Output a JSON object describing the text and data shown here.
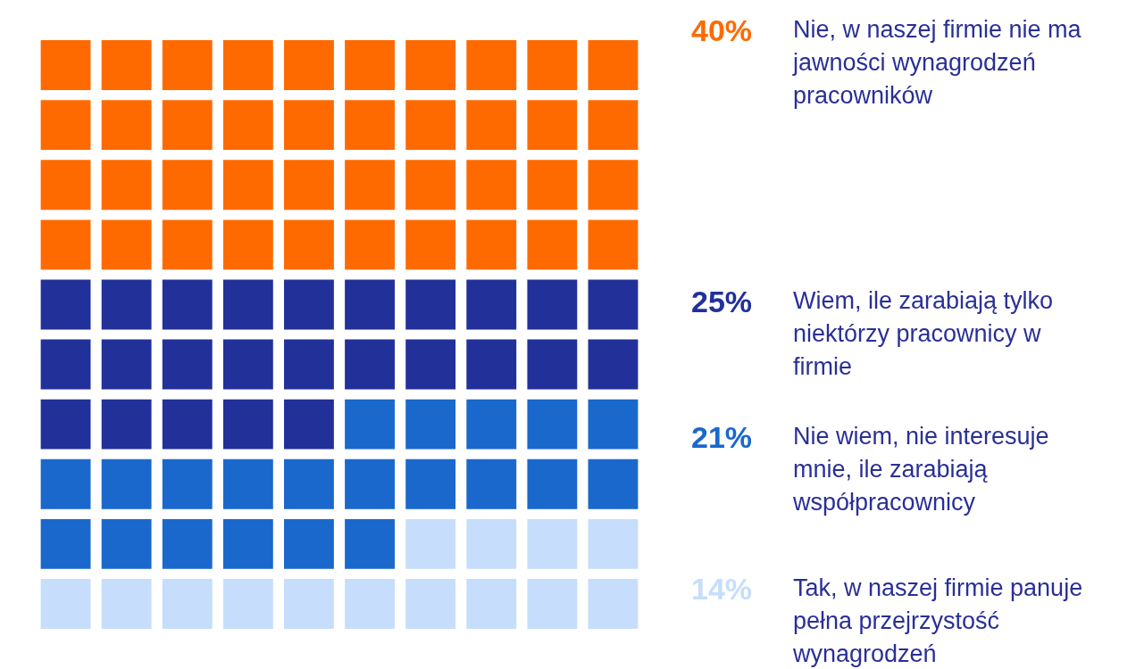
{
  "chart_data": {
    "type": "other",
    "categories": [
      "Nie, w naszej firmie nie ma jawności wynagrodzeń pracowników",
      "Wiem, ile zarabiają tylko niektórzy pracownicy w firmie",
      "Nie wiem, nie interesuje mnie, ile zarabiają współpracownicy",
      "Tak, w naszej firmie panuje pełna przejrzystość wynagrodzeń"
    ],
    "values": [
      40,
      25,
      21,
      14
    ],
    "value_labels": [
      "40%",
      "25%",
      "21%",
      "14%"
    ],
    "colors": [
      "#ff6a00",
      "#22309a",
      "#1a68cc",
      "#c6defb"
    ]
  }
}
